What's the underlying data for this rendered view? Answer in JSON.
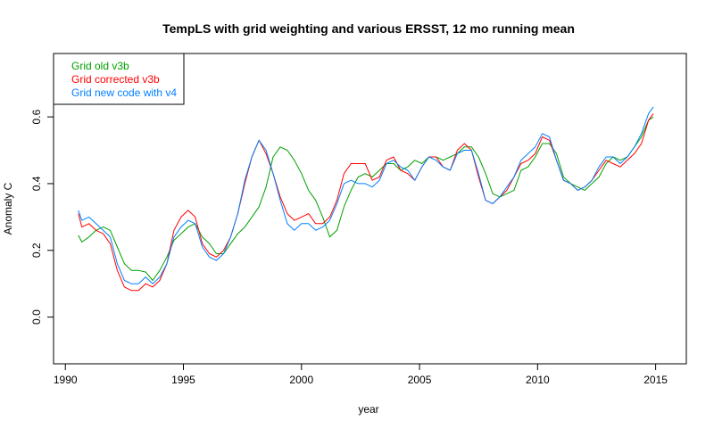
{
  "chart_data": {
    "type": "line",
    "title": "TempLS with grid weighting and various ERSST, 12 mo running mean",
    "xlabel": "year",
    "ylabel": "Anomaly C",
    "xlim": [
      1989.5,
      2016.3
    ],
    "ylim": [
      -0.14,
      0.79
    ],
    "xticks": [
      1990,
      1995,
      2000,
      2005,
      2010,
      2015
    ],
    "xtick_labels": [
      "1990",
      "1995",
      "2000",
      "2005",
      "2010",
      "2015"
    ],
    "yticks": [
      0.0,
      0.2,
      0.4,
      0.6
    ],
    "ytick_labels": [
      "0.0",
      "0.2",
      "0.4",
      "0.6"
    ],
    "legend_position": "top-left",
    "grid": false,
    "series": [
      {
        "name": "Grid old v3b",
        "color": "#00a000",
        "x": [
          1990.55,
          1990.7,
          1991.0,
          1991.3,
          1991.6,
          1991.9,
          1992.2,
          1992.5,
          1992.8,
          1993.1,
          1993.4,
          1993.7,
          1994.0,
          1994.3,
          1994.6,
          1994.9,
          1995.2,
          1995.5,
          1995.8,
          1996.1,
          1996.4,
          1996.7,
          1997.0,
          1997.3,
          1997.6,
          1997.9,
          1998.2,
          1998.5,
          1998.8,
          1999.1,
          1999.4,
          1999.7,
          2000.0,
          2000.3,
          2000.6,
          2000.9,
          2001.2,
          2001.5,
          2001.8,
          2002.1,
          2002.4,
          2002.7,
          2003.0,
          2003.3,
          2003.6,
          2003.9,
          2004.2,
          2004.5,
          2004.8,
          2005.1,
          2005.4,
          2005.7,
          2006.0,
          2006.3,
          2006.6,
          2006.9,
          2007.2,
          2007.5,
          2007.8,
          2008.1,
          2008.4,
          2008.7,
          2009.0,
          2009.3,
          2009.6,
          2009.9,
          2010.2,
          2010.5,
          2010.8,
          2011.1,
          2011.4,
          2011.7,
          2012.0,
          2012.3,
          2012.6,
          2012.9,
          2013.2,
          2013.5,
          2013.8,
          2014.1,
          2014.4,
          2014.7,
          2014.9
        ],
        "values": [
          0.245,
          0.225,
          0.24,
          0.26,
          0.27,
          0.26,
          0.21,
          0.16,
          0.14,
          0.14,
          0.135,
          0.11,
          0.14,
          0.18,
          0.23,
          0.25,
          0.27,
          0.28,
          0.24,
          0.22,
          0.19,
          0.19,
          0.22,
          0.25,
          0.27,
          0.3,
          0.33,
          0.39,
          0.48,
          0.51,
          0.5,
          0.47,
          0.43,
          0.38,
          0.35,
          0.3,
          0.24,
          0.26,
          0.33,
          0.38,
          0.42,
          0.43,
          0.42,
          0.44,
          0.46,
          0.46,
          0.44,
          0.45,
          0.47,
          0.46,
          0.48,
          0.48,
          0.47,
          0.48,
          0.49,
          0.51,
          0.51,
          0.48,
          0.43,
          0.37,
          0.36,
          0.37,
          0.38,
          0.44,
          0.45,
          0.48,
          0.52,
          0.52,
          0.49,
          0.42,
          0.4,
          0.39,
          0.38,
          0.4,
          0.42,
          0.46,
          0.48,
          0.47,
          0.48,
          0.51,
          0.54,
          0.59,
          0.6
        ]
      },
      {
        "name": "Grid corrected v3b",
        "color": "#ff0000",
        "x": [
          1990.55,
          1990.7,
          1991.0,
          1991.3,
          1991.6,
          1991.9,
          1992.2,
          1992.5,
          1992.8,
          1993.1,
          1993.4,
          1993.7,
          1994.0,
          1994.3,
          1994.6,
          1994.9,
          1995.2,
          1995.5,
          1995.8,
          1996.1,
          1996.4,
          1996.7,
          1997.0,
          1997.3,
          1997.6,
          1997.9,
          1998.2,
          1998.5,
          1998.8,
          1999.1,
          1999.4,
          1999.7,
          2000.0,
          2000.3,
          2000.6,
          2000.9,
          2001.2,
          2001.5,
          2001.8,
          2002.1,
          2002.4,
          2002.7,
          2003.0,
          2003.3,
          2003.6,
          2003.9,
          2004.2,
          2004.5,
          2004.8,
          2005.1,
          2005.4,
          2005.7,
          2006.0,
          2006.3,
          2006.6,
          2006.9,
          2007.2,
          2007.5,
          2007.8,
          2008.1,
          2008.4,
          2008.7,
          2009.0,
          2009.3,
          2009.6,
          2009.9,
          2010.2,
          2010.5,
          2010.8,
          2011.1,
          2011.4,
          2011.7,
          2012.0,
          2012.3,
          2012.6,
          2012.9,
          2013.2,
          2013.5,
          2013.8,
          2014.1,
          2014.4,
          2014.7,
          2014.9
        ],
        "values": [
          0.31,
          0.27,
          0.28,
          0.26,
          0.25,
          0.22,
          0.14,
          0.09,
          0.08,
          0.08,
          0.1,
          0.09,
          0.11,
          0.16,
          0.26,
          0.3,
          0.32,
          0.3,
          0.22,
          0.19,
          0.18,
          0.2,
          0.24,
          0.31,
          0.4,
          0.48,
          0.53,
          0.49,
          0.43,
          0.36,
          0.31,
          0.29,
          0.3,
          0.31,
          0.28,
          0.28,
          0.3,
          0.35,
          0.43,
          0.46,
          0.46,
          0.46,
          0.41,
          0.42,
          0.47,
          0.48,
          0.44,
          0.43,
          0.41,
          0.45,
          0.48,
          0.48,
          0.45,
          0.44,
          0.5,
          0.52,
          0.5,
          0.42,
          0.35,
          0.34,
          0.36,
          0.38,
          0.42,
          0.46,
          0.47,
          0.49,
          0.54,
          0.53,
          0.47,
          0.41,
          0.4,
          0.38,
          0.39,
          0.41,
          0.44,
          0.47,
          0.46,
          0.45,
          0.47,
          0.49,
          0.52,
          0.59,
          0.61
        ]
      },
      {
        "name": "Grid new code with v4",
        "color": "#0080ff",
        "x": [
          1990.55,
          1990.7,
          1991.0,
          1991.3,
          1991.6,
          1991.9,
          1992.2,
          1992.5,
          1992.8,
          1993.1,
          1993.4,
          1993.7,
          1994.0,
          1994.3,
          1994.6,
          1994.9,
          1995.2,
          1995.5,
          1995.8,
          1996.1,
          1996.4,
          1996.7,
          1997.0,
          1997.3,
          1997.6,
          1997.9,
          1998.2,
          1998.5,
          1998.8,
          1999.1,
          1999.4,
          1999.7,
          2000.0,
          2000.3,
          2000.6,
          2000.9,
          2001.2,
          2001.5,
          2001.8,
          2002.1,
          2002.4,
          2002.7,
          2003.0,
          2003.3,
          2003.6,
          2003.9,
          2004.2,
          2004.5,
          2004.8,
          2005.1,
          2005.4,
          2005.7,
          2006.0,
          2006.3,
          2006.6,
          2006.9,
          2007.2,
          2007.5,
          2007.8,
          2008.1,
          2008.4,
          2008.7,
          2009.0,
          2009.3,
          2009.6,
          2009.9,
          2010.2,
          2010.5,
          2010.8,
          2011.1,
          2011.4,
          2011.7,
          2012.0,
          2012.3,
          2012.6,
          2012.9,
          2013.2,
          2013.5,
          2013.8,
          2014.1,
          2014.4,
          2014.7,
          2014.9
        ],
        "values": [
          0.32,
          0.29,
          0.3,
          0.28,
          0.26,
          0.24,
          0.16,
          0.11,
          0.1,
          0.1,
          0.12,
          0.1,
          0.12,
          0.16,
          0.24,
          0.27,
          0.29,
          0.28,
          0.21,
          0.18,
          0.17,
          0.19,
          0.24,
          0.31,
          0.41,
          0.48,
          0.53,
          0.5,
          0.43,
          0.35,
          0.28,
          0.26,
          0.28,
          0.28,
          0.26,
          0.27,
          0.29,
          0.34,
          0.4,
          0.41,
          0.4,
          0.4,
          0.39,
          0.41,
          0.46,
          0.47,
          0.45,
          0.44,
          0.41,
          0.45,
          0.48,
          0.47,
          0.45,
          0.44,
          0.49,
          0.5,
          0.5,
          0.43,
          0.35,
          0.34,
          0.36,
          0.39,
          0.42,
          0.47,
          0.49,
          0.51,
          0.55,
          0.54,
          0.47,
          0.41,
          0.4,
          0.38,
          0.39,
          0.41,
          0.45,
          0.48,
          0.48,
          0.46,
          0.48,
          0.51,
          0.55,
          0.61,
          0.63
        ]
      }
    ]
  }
}
